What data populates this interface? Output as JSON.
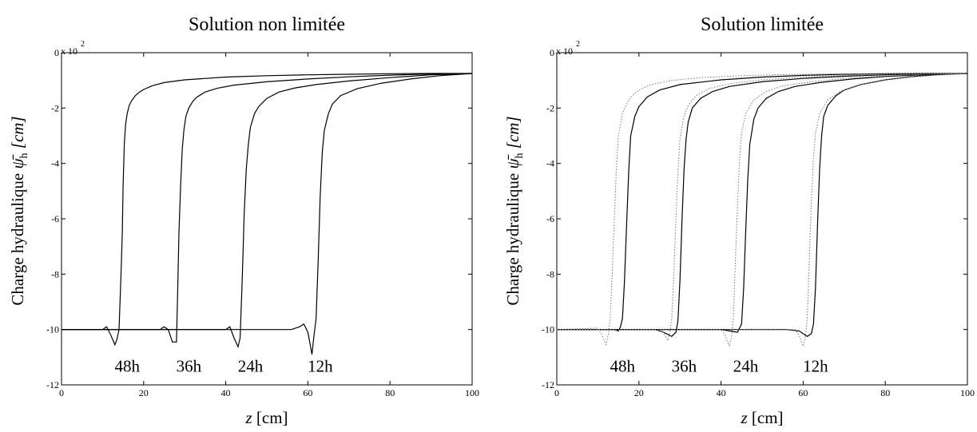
{
  "chart_data": [
    {
      "type": "line",
      "title": "Solution non limitée",
      "xlabel": "z [cm]",
      "xlabel_parts": {
        "var": "z",
        "unit": "[cm]"
      },
      "ylabel": "Charge hydraulique ψ̄_h [cm]",
      "ylabel_parts": {
        "text": "Charge hydraulique",
        "sym": "ψ̄",
        "sub": "h",
        "unit": "[cm]"
      },
      "y_multiplier": "x 10",
      "y_multiplier_exp": "2",
      "xlim": [
        0,
        100
      ],
      "ylim": [
        -12,
        0
      ],
      "x_ticks": [
        0,
        20,
        40,
        60,
        80,
        100
      ],
      "y_ticks": [
        0,
        -2,
        -4,
        -6,
        -8,
        -10,
        -12
      ],
      "grid": false,
      "curve_labels": [
        {
          "text": "48h",
          "x": 16,
          "y": -11.3
        },
        {
          "text": "36h",
          "x": 31,
          "y": -11.3
        },
        {
          "text": "24h",
          "x": 46,
          "y": -11.3
        },
        {
          "text": "12h",
          "x": 63,
          "y": -11.3
        }
      ],
      "series": [
        {
          "style": "solid",
          "x": [
            0,
            10,
            11,
            12,
            13,
            13.5,
            14,
            14.2,
            14.5,
            14.8,
            15,
            15.3,
            15.6,
            16,
            16.5,
            17,
            18,
            19,
            20,
            22,
            25,
            30,
            40,
            50,
            60,
            70,
            80,
            90,
            100
          ],
          "y": [
            -10,
            -10,
            -9.9,
            -10.2,
            -10.55,
            -10.35,
            -10,
            -9.2,
            -8,
            -6.5,
            -4.8,
            -3.3,
            -2.6,
            -2.2,
            -1.9,
            -1.75,
            -1.55,
            -1.42,
            -1.33,
            -1.2,
            -1.08,
            -0.98,
            -0.88,
            -0.83,
            -0.8,
            -0.78,
            -0.76,
            -0.75,
            -0.75
          ]
        },
        {
          "style": "solid",
          "x": [
            0,
            24,
            25,
            26,
            27,
            28,
            28.3,
            28.6,
            29,
            29.4,
            29.8,
            30.3,
            31,
            32,
            33,
            35,
            38,
            42,
            50,
            60,
            70,
            80,
            90,
            100
          ],
          "y": [
            -10,
            -10,
            -9.9,
            -10,
            -10.45,
            -10.45,
            -8.5,
            -6.5,
            -4.8,
            -3.5,
            -2.8,
            -2.3,
            -2,
            -1.75,
            -1.6,
            -1.42,
            -1.28,
            -1.17,
            -1.05,
            -0.95,
            -0.87,
            -0.81,
            -0.77,
            -0.75
          ]
        },
        {
          "style": "solid",
          "x": [
            0,
            40,
            41,
            42,
            43,
            43.5,
            44,
            44.5,
            45,
            45.5,
            46,
            47,
            48,
            50,
            53,
            57,
            62,
            70,
            80,
            90,
            100
          ],
          "y": [
            -10,
            -10,
            -9.9,
            -10.3,
            -10.62,
            -10.3,
            -8.2,
            -5.8,
            -4.2,
            -3.3,
            -2.7,
            -2.2,
            -1.95,
            -1.65,
            -1.42,
            -1.27,
            -1.15,
            -1.02,
            -0.9,
            -0.8,
            -0.75
          ]
        },
        {
          "style": "solid",
          "x": [
            0,
            56,
            58,
            59,
            60,
            60.5,
            61,
            61.5,
            62,
            62.5,
            63,
            63.5,
            64,
            65,
            66,
            68,
            72,
            78,
            85,
            92,
            100
          ],
          "y": [
            -10,
            -10,
            -9.9,
            -9.8,
            -10.1,
            -10.5,
            -10.9,
            -10.2,
            -9.6,
            -7.5,
            -5.2,
            -3.6,
            -2.8,
            -2.2,
            -1.85,
            -1.55,
            -1.3,
            -1.1,
            -0.95,
            -0.83,
            -0.75
          ]
        }
      ]
    },
    {
      "type": "line",
      "title": "Solution limitée",
      "xlabel": "z [cm]",
      "xlabel_parts": {
        "var": "z",
        "unit": "[cm]"
      },
      "ylabel": "Charge hydraulique ψ̄_h [cm]",
      "ylabel_parts": {
        "text": "Charge hydraulique",
        "sym": "ψ̄",
        "sub": "h",
        "unit": "[cm]"
      },
      "y_multiplier": "x 10",
      "y_multiplier_exp": "2",
      "xlim": [
        0,
        100
      ],
      "ylim": [
        -12,
        0
      ],
      "x_ticks": [
        0,
        20,
        40,
        60,
        80,
        100
      ],
      "y_ticks": [
        0,
        -2,
        -4,
        -6,
        -8,
        -10,
        -12
      ],
      "grid": false,
      "curve_labels": [
        {
          "text": "48h",
          "x": 16,
          "y": -11.3
        },
        {
          "text": "36h",
          "x": 31,
          "y": -11.3
        },
        {
          "text": "24h",
          "x": 46,
          "y": -11.3
        },
        {
          "text": "12h",
          "x": 63,
          "y": -11.3
        }
      ],
      "series": [
        {
          "style": "solid",
          "x": [
            0,
            12,
            14,
            15,
            15.5,
            16,
            16.5,
            17,
            17.5,
            18,
            19,
            20,
            22,
            25,
            30,
            40,
            50,
            60,
            70,
            80,
            90,
            100
          ],
          "y": [
            -10,
            -10,
            -10,
            -10.05,
            -9.9,
            -9.6,
            -8.2,
            -6.2,
            -4.3,
            -3,
            -2.3,
            -1.95,
            -1.6,
            -1.35,
            -1.15,
            -0.98,
            -0.88,
            -0.82,
            -0.78,
            -0.76,
            -0.75,
            -0.75
          ]
        },
        {
          "style": "solid",
          "x": [
            0,
            24,
            26,
            28,
            29,
            29.5,
            30,
            30.5,
            31,
            31.5,
            32,
            33,
            35,
            38,
            42,
            50,
            60,
            70,
            80,
            90,
            100
          ],
          "y": [
            -10,
            -10,
            -10.1,
            -10.25,
            -10.1,
            -9.7,
            -8.2,
            -6,
            -4.2,
            -3.1,
            -2.5,
            -2,
            -1.65,
            -1.4,
            -1.22,
            -1.05,
            -0.93,
            -0.85,
            -0.8,
            -0.76,
            -0.75
          ]
        },
        {
          "style": "solid",
          "x": [
            0,
            40,
            42,
            44,
            45,
            45.5,
            46,
            46.5,
            47,
            48,
            49,
            51,
            54,
            58,
            64,
            72,
            80,
            90,
            100
          ],
          "y": [
            -10,
            -10,
            -10.05,
            -10.1,
            -9.8,
            -8.5,
            -6.5,
            -4.6,
            -3.3,
            -2.4,
            -2,
            -1.65,
            -1.4,
            -1.22,
            -1.08,
            -0.95,
            -0.86,
            -0.79,
            -0.75
          ]
        },
        {
          "style": "solid",
          "x": [
            0,
            56,
            59,
            60,
            61,
            62,
            62.5,
            63,
            63.5,
            64,
            64.5,
            65,
            66,
            68,
            70,
            74,
            80,
            86,
            92,
            100
          ],
          "y": [
            -10,
            -10,
            -10.05,
            -10.15,
            -10.25,
            -10.15,
            -9.8,
            -8.5,
            -6.2,
            -4.2,
            -3,
            -2.3,
            -1.9,
            -1.55,
            -1.35,
            -1.15,
            -0.98,
            -0.87,
            -0.8,
            -0.75
          ]
        },
        {
          "style": "dotted",
          "x": [
            0,
            10,
            11,
            12,
            12.5,
            13,
            13.5,
            14,
            14.5,
            15,
            16,
            17,
            18,
            20,
            23,
            28,
            35,
            45,
            55,
            65,
            80,
            100
          ],
          "y": [
            -10,
            -9.95,
            -10.2,
            -10.55,
            -10.2,
            -9.6,
            -8,
            -6,
            -4.2,
            -3,
            -2.2,
            -1.85,
            -1.6,
            -1.35,
            -1.15,
            -1,
            -0.9,
            -0.83,
            -0.79,
            -0.77,
            -0.76,
            -0.75
          ]
        },
        {
          "style": "dotted",
          "x": [
            0,
            24,
            26,
            27,
            27.5,
            28,
            28.5,
            29,
            29.5,
            30,
            31,
            32,
            34,
            37,
            42,
            50,
            60,
            70,
            80,
            100
          ],
          "y": [
            -10,
            -10,
            -10.1,
            -10.4,
            -10.1,
            -9.6,
            -8,
            -6,
            -4.3,
            -3.1,
            -2.3,
            -1.9,
            -1.55,
            -1.3,
            -1.12,
            -0.98,
            -0.88,
            -0.82,
            -0.78,
            -0.75
          ]
        },
        {
          "style": "dotted",
          "x": [
            0,
            40,
            41,
            42,
            42.5,
            43,
            43.5,
            44,
            44.5,
            45,
            46,
            48,
            51,
            55,
            62,
            70,
            80,
            90,
            100
          ],
          "y": [
            -10,
            -10,
            -10.2,
            -10.6,
            -10.3,
            -9.6,
            -7.5,
            -5.5,
            -3.9,
            -2.9,
            -2.2,
            -1.7,
            -1.4,
            -1.2,
            -1.05,
            -0.93,
            -0.84,
            -0.78,
            -0.75
          ]
        },
        {
          "style": "dotted",
          "x": [
            0,
            56,
            58,
            59,
            60,
            60.5,
            61,
            61.5,
            62,
            62.5,
            63,
            64,
            66,
            69,
            74,
            80,
            88,
            100
          ],
          "y": [
            -10,
            -10,
            -10,
            -10.2,
            -10.6,
            -10.3,
            -9.6,
            -7.5,
            -5.3,
            -3.8,
            -2.9,
            -2.2,
            -1.7,
            -1.4,
            -1.15,
            -0.98,
            -0.85,
            -0.75
          ]
        }
      ]
    }
  ]
}
